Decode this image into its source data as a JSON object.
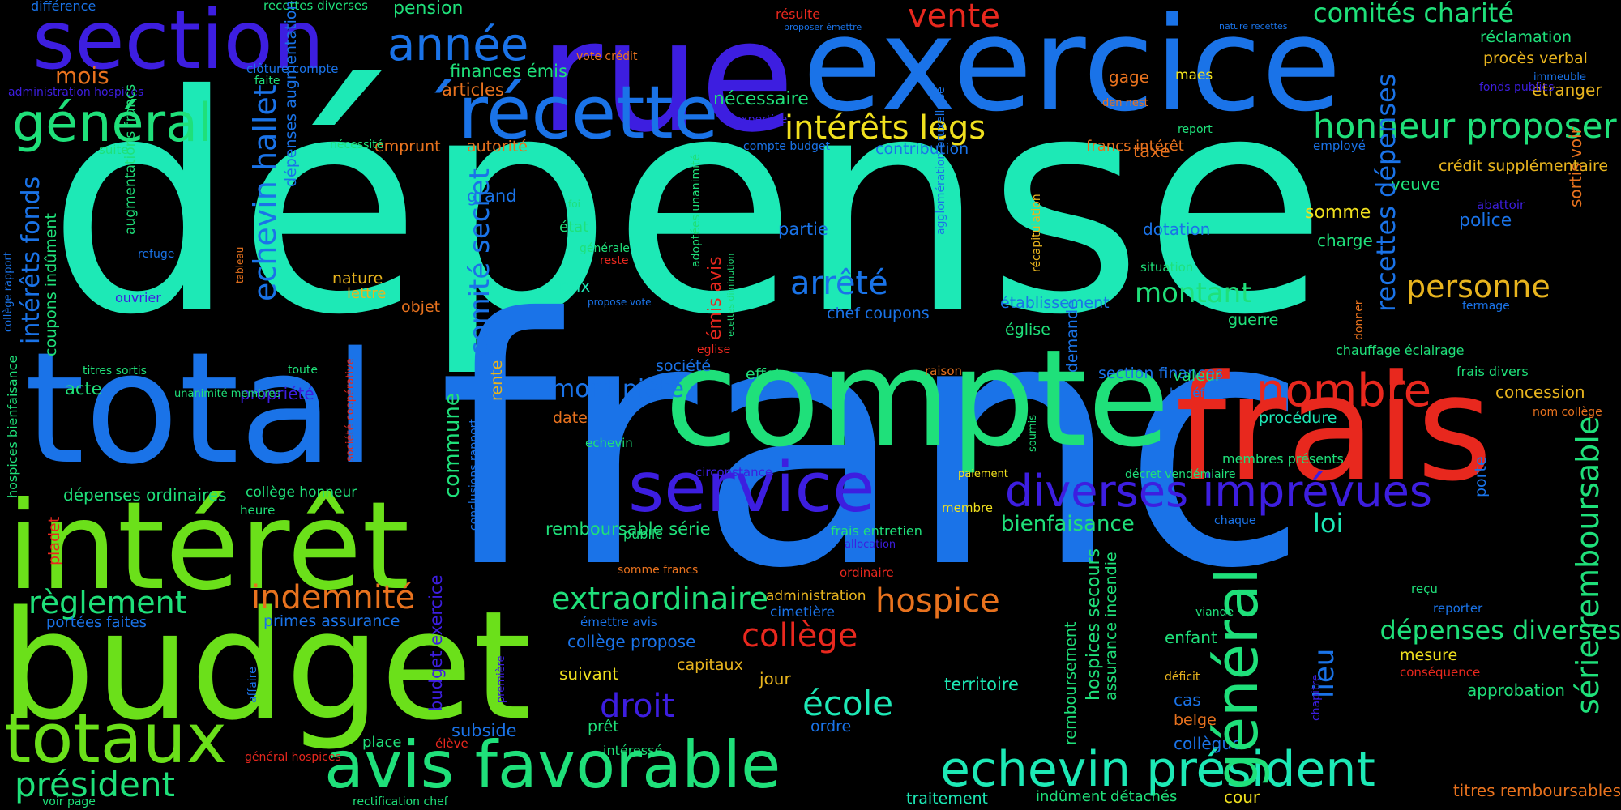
{
  "colors": {
    "background": "#000000",
    "teal": "#1de9b6",
    "blue": "#1a73e8",
    "indigo": "#3d1ee0",
    "green": "#1fe07a",
    "lime": "#6be01a",
    "red": "#e8281e",
    "orange": "#e8721e",
    "amber": "#e8b41e",
    "yellow": "#f0e01e"
  },
  "words": [
    {
      "text": "dépense",
      "color": "#1de9b6"
    },
    {
      "text": "franc",
      "color": "#1a73e8"
    },
    {
      "text": "exercice",
      "color": "#1a73e8"
    },
    {
      "text": "rue",
      "color": "#3d1ee0"
    },
    {
      "text": "compte",
      "color": "#1fe07a"
    },
    {
      "text": "total",
      "color": "#1a73e8"
    },
    {
      "text": "frais",
      "color": "#e8281e"
    },
    {
      "text": "budget",
      "color": "#6be01a"
    },
    {
      "text": "intérêt",
      "color": "#6be01a"
    },
    {
      "text": "section",
      "color": "#3d1ee0"
    },
    {
      "text": "´récette",
      "color": "#1a73e8"
    },
    {
      "text": "totaux",
      "color": "#6be01a"
    },
    {
      "text": "service",
      "color": "#3d1ee0"
    },
    {
      "text": "avis favorable",
      "color": "#1fe07a"
    },
    {
      "text": "echevin président",
      "color": "#1de9b6"
    },
    {
      "text": "général",
      "color": "#1fe07a"
    },
    {
      "text": "série remboursable",
      "color": "#1fe07a"
    },
    {
      "text": "année",
      "color": "#1a73e8"
    },
    {
      "text": "vente",
      "color": "#e8281e"
    },
    {
      "text": "comités charité",
      "color": "#1fe07a"
    },
    {
      "text": "honneur proposer",
      "color": "#1fe07a"
    },
    {
      "text": "intérêts legs",
      "color": "#f0e01e"
    },
    {
      "text": "diverses imprévues",
      "color": "#3d1ee0"
    },
    {
      "text": "nombre",
      "color": "#e8281e"
    },
    {
      "text": "arrêté",
      "color": "#1a73e8"
    },
    {
      "text": "personne",
      "color": "#e8b41e"
    },
    {
      "text": "montant",
      "color": "#1fe07a"
    },
    {
      "text": "règlement",
      "color": "#1fe07a"
    },
    {
      "text": "indemnité",
      "color": "#e8721e"
    },
    {
      "text": "président",
      "color": "#1fe07a"
    },
    {
      "text": "extraordinaire",
      "color": "#1fe07a"
    },
    {
      "text": "collège",
      "color": "#e8281e"
    },
    {
      "text": "hospice",
      "color": "#e8721e"
    },
    {
      "text": "droit",
      "color": "#3d1ee0"
    },
    {
      "text": "école",
      "color": "#1de9b6"
    },
    {
      "text": "loi",
      "color": "#1de9b6"
    },
    {
      "text": "bienfaisance",
      "color": "#1fe07a"
    },
    {
      "text": "dépenses diverses",
      "color": "#1fe07a"
    },
    {
      "text": "mois",
      "color": "#e8721e"
    },
    {
      "text": "mont piété",
      "color": "#1a73e8"
    },
    {
      "text": "pension",
      "color": "#1fe07a"
    },
    {
      "text": "finances émis",
      "color": "#1fe07a"
    },
    {
      "text": "articles",
      "color": "#e8721e"
    },
    {
      "text": "nécessaire",
      "color": "#1fe07a"
    },
    {
      "text": "gage",
      "color": "#e8721e"
    },
    {
      "text": "maes",
      "color": "#f0e01e"
    },
    {
      "text": "réclamation",
      "color": "#1fe07a"
    },
    {
      "text": "procès verbal",
      "color": "#e8b41e"
    },
    {
      "text": "étranger",
      "color": "#e8b41e"
    },
    {
      "text": "emprunt",
      "color": "#e8721e"
    },
    {
      "text": "autorité",
      "color": "#e8721e"
    },
    {
      "text": "contribution",
      "color": "#1a73e8"
    },
    {
      "text": "francs intérêt",
      "color": "#e8721e"
    },
    {
      "text": "taxe",
      "color": "#e8721e"
    },
    {
      "text": "employé",
      "color": "#1a73e8"
    },
    {
      "text": "crédit supplémentaire",
      "color": "#e8b41e"
    },
    {
      "text": "veuve",
      "color": "#1fe07a"
    },
    {
      "text": "grand",
      "color": "#1a73e8"
    },
    {
      "text": "état",
      "color": "#1fe07a"
    },
    {
      "text": "partie",
      "color": "#1a73e8"
    },
    {
      "text": "dotation",
      "color": "#1a73e8"
    },
    {
      "text": "somme",
      "color": "#f0e01e"
    },
    {
      "text": "police",
      "color": "#1a73e8"
    },
    {
      "text": "charge",
      "color": "#1fe07a"
    },
    {
      "text": "prix",
      "color": "#1de9b6"
    },
    {
      "text": "lettre",
      "color": "#e8b41e"
    },
    {
      "text": "objet",
      "color": "#e8721e"
    },
    {
      "text": "nature",
      "color": "#e8b41e"
    },
    {
      "text": "chef coupons",
      "color": "#1a73e8"
    },
    {
      "text": "établissement",
      "color": "#1a73e8"
    },
    {
      "text": "église",
      "color": "#1fe07a"
    },
    {
      "text": "guerre",
      "color": "#1fe07a"
    },
    {
      "text": "société",
      "color": "#1a73e8"
    },
    {
      "text": "effet",
      "color": "#1fe07a"
    },
    {
      "text": "section finances",
      "color": "#1a73e8"
    },
    {
      "text": "valeur",
      "color": "#1fe07a"
    },
    {
      "text": "bénéfice",
      "color": "#1a73e8"
    },
    {
      "text": "concession",
      "color": "#e8b41e"
    },
    {
      "text": "acte",
      "color": "#1fe07a"
    },
    {
      "text": "propriété",
      "color": "#3d1ee0"
    },
    {
      "text": "date",
      "color": "#e8721e"
    },
    {
      "text": "procédure",
      "color": "#1de9b6"
    },
    {
      "text": "dépenses ordinaires",
      "color": "#1fe07a"
    },
    {
      "text": "collège honneur",
      "color": "#1fe07a"
    },
    {
      "text": "remboursable série",
      "color": "#1fe07a"
    },
    {
      "text": "public",
      "color": "#1fe07a"
    },
    {
      "text": "frais entretien",
      "color": "#1fe07a"
    },
    {
      "text": "portées faites",
      "color": "#1a73e8"
    },
    {
      "text": "primes assurance",
      "color": "#1a73e8"
    },
    {
      "text": "collège propose",
      "color": "#1a73e8"
    },
    {
      "text": "suivant",
      "color": "#f0e01e"
    },
    {
      "text": "capitaux",
      "color": "#e8b41e"
    },
    {
      "text": "jour",
      "color": "#e8b41e"
    },
    {
      "text": "territoire",
      "color": "#1de9b6"
    },
    {
      "text": "enfant",
      "color": "#1fe07a"
    },
    {
      "text": "mesure",
      "color": "#f0e01e"
    },
    {
      "text": "approbation",
      "color": "#1fe07a"
    },
    {
      "text": "cas",
      "color": "#1a73e8"
    },
    {
      "text": "belge",
      "color": "#e8721e"
    },
    {
      "text": "collègue",
      "color": "#1a73e8"
    },
    {
      "text": "ordre",
      "color": "#1a73e8"
    },
    {
      "text": "prêt",
      "color": "#1fe07a"
    },
    {
      "text": "subside",
      "color": "#1a73e8"
    },
    {
      "text": "place",
      "color": "#1fe07a"
    },
    {
      "text": "élève",
      "color": "#e8281e"
    },
    {
      "text": "intéressé",
      "color": "#1fe07a"
    },
    {
      "text": "titres remboursables",
      "color": "#e8721e"
    },
    {
      "text": "cour",
      "color": "#f0e01e"
    },
    {
      "text": "indûment détachés",
      "color": "#1fe07a"
    },
    {
      "text": "traitement",
      "color": "#1de9b6"
    },
    {
      "text": "administration",
      "color": "#e8b41e"
    },
    {
      "text": "cimetière",
      "color": "#1a73e8"
    },
    {
      "text": "émettre avis",
      "color": "#1a73e8"
    },
    {
      "text": "différence",
      "color": "#1a73e8"
    },
    {
      "text": "recettes diverses",
      "color": "#1fe07a"
    },
    {
      "text": "clôture compte",
      "color": "#1a73e8"
    },
    {
      "text": "faite",
      "color": "#1fe07a"
    },
    {
      "text": "vote crédit",
      "color": "#e8721e"
    },
    {
      "text": "résulte",
      "color": "#e8281e"
    },
    {
      "text": "proposer émettre",
      "color": "#1a73e8"
    },
    {
      "text": "nature recettes",
      "color": "#1a73e8"
    },
    {
      "text": "administration hospices",
      "color": "#3d1ee0"
    },
    {
      "text": "fonds publics",
      "color": "#3d1ee0"
    },
    {
      "text": "immeuble",
      "color": "#1a73e8"
    },
    {
      "text": "den nest",
      "color": "#e8721e"
    },
    {
      "text": "expertise",
      "color": "#3d1ee0"
    },
    {
      "text": "report",
      "color": "#1fe07a"
    },
    {
      "text": "compte budget",
      "color": "#1a73e8"
    },
    {
      "text": "nécessité",
      "color": "#1fe07a"
    },
    {
      "text": "suite",
      "color": "#1fe07a"
    },
    {
      "text": "foi",
      "color": "#1fe07a"
    },
    {
      "text": "générale",
      "color": "#1fe07a"
    },
    {
      "text": "reste",
      "color": "#e8281e"
    },
    {
      "text": "abattoir",
      "color": "#3d1ee0"
    },
    {
      "text": "refuge",
      "color": "#1a73e8"
    },
    {
      "text": "ouvrier",
      "color": "#3d1ee0"
    },
    {
      "text": "situation",
      "color": "#1fe07a"
    },
    {
      "text": "propose vote",
      "color": "#1a73e8"
    },
    {
      "text": "fermage",
      "color": "#1a73e8"
    },
    {
      "text": "chauffage éclairage",
      "color": "#1fe07a"
    },
    {
      "text": "frais divers",
      "color": "#1fe07a"
    },
    {
      "text": "titres sortis",
      "color": "#1fe07a"
    },
    {
      "text": "unanimité membres",
      "color": "#1fe07a"
    },
    {
      "text": "toute",
      "color": "#1fe07a"
    },
    {
      "text": "eglise",
      "color": "#e8281e"
    },
    {
      "text": "raison",
      "color": "#e8721e"
    },
    {
      "text": "nom collège",
      "color": "#e8721e"
    },
    {
      "text": "echevin",
      "color": "#1fe07a"
    },
    {
      "text": "circonstance",
      "color": "#3d1ee0"
    },
    {
      "text": "décret vendémiaire",
      "color": "#1fe07a"
    },
    {
      "text": "paiement",
      "color": "#f0e01e"
    },
    {
      "text": "membres présents",
      "color": "#1fe07a"
    },
    {
      "text": "pladet",
      "color": "#e8281e"
    },
    {
      "text": "heure",
      "color": "#1fe07a"
    },
    {
      "text": "membre",
      "color": "#f0e01e"
    },
    {
      "text": "chaque",
      "color": "#1a73e8"
    },
    {
      "text": "allocation",
      "color": "#3d1ee0"
    },
    {
      "text": "somme francs",
      "color": "#e8721e"
    },
    {
      "text": "ordinaire",
      "color": "#e8281e"
    },
    {
      "text": "viande",
      "color": "#1fe07a"
    },
    {
      "text": "reçu",
      "color": "#1fe07a"
    },
    {
      "text": "reporter",
      "color": "#1a73e8"
    },
    {
      "text": "déficit",
      "color": "#e8b41e"
    },
    {
      "text": "conséquence",
      "color": "#e8281e"
    },
    {
      "text": "général hospices",
      "color": "#e8281e"
    },
    {
      "text": "voir page",
      "color": "#1fe07a"
    },
    {
      "text": "rectification chef",
      "color": "#1fe07a"
    },
    {
      "text": "echevin hallet",
      "color": "#1a73e8"
    },
    {
      "text": "intérêts fonds",
      "color": "#1a73e8"
    },
    {
      "text": "comité secret",
      "color": "#1a73e8"
    },
    {
      "text": "commune",
      "color": "#1fe07a"
    },
    {
      "text": "émis avis",
      "color": "#e8281e"
    },
    {
      "text": "recettes dépenses",
      "color": "#1a73e8"
    },
    {
      "text": "lieu",
      "color": "#1a73e8"
    },
    {
      "text": "demande",
      "color": "#1a73e8"
    },
    {
      "text": "hospices secours",
      "color": "#1fe07a"
    },
    {
      "text": "remboursement",
      "color": "#1fe07a"
    },
    {
      "text": "assurance incendie",
      "color": "#1fe07a"
    },
    {
      "text": "coupons indûment",
      "color": "#1fe07a"
    },
    {
      "text": "hospices bienfaisance",
      "color": "#1fe07a"
    },
    {
      "text": "collège rapport",
      "color": "#1a73e8"
    },
    {
      "text": "dépenses augmentation",
      "color": "#1a73e8"
    },
    {
      "text": "tableau",
      "color": "#e8721e"
    },
    {
      "text": "augmentations francs",
      "color": "#1fe07a"
    },
    {
      "text": "rente",
      "color": "#e8b41e"
    },
    {
      "text": "conclusions rapport",
      "color": "#1a73e8"
    },
    {
      "text": "société coopérative",
      "color": "#e8281e"
    },
    {
      "text": "budget exercice",
      "color": "#3d1ee0"
    },
    {
      "text": "affaire",
      "color": "#1a73e8"
    },
    {
      "text": "première",
      "color": "#3d1ee0"
    },
    {
      "text": "adoptées unanimité",
      "color": "#1fe07a"
    },
    {
      "text": "recettes diminution",
      "color": "#1fe07a"
    },
    {
      "text": "agglomération bruxelloise",
      "color": "#1a73e8"
    },
    {
      "text": "récapitulation",
      "color": "#e8b41e"
    },
    {
      "text": "soumis",
      "color": "#1fe07a"
    },
    {
      "text": "porte",
      "color": "#1a73e8"
    },
    {
      "text": "donner",
      "color": "#e8721e"
    },
    {
      "text": "sortis voir",
      "color": "#e8721e"
    },
    {
      "text": "chapitre",
      "color": "#3d1ee0"
    },
    {
      "text": "indigents étrangers",
      "color": "#1fe07a"
    }
  ]
}
